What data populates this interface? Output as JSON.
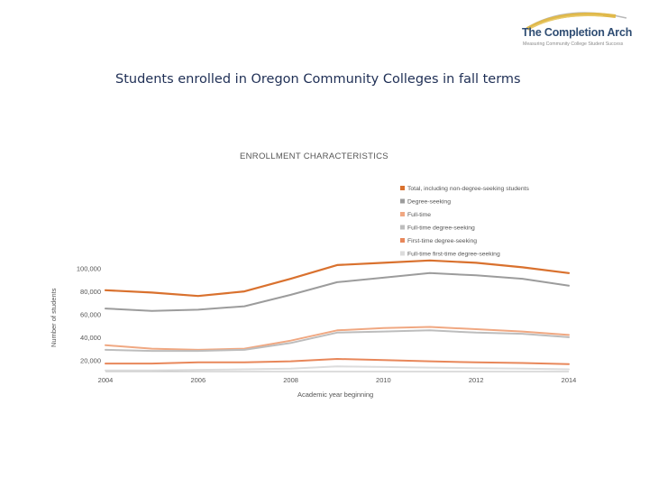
{
  "logo": {
    "title": "The Completion Arch",
    "tagline": "Measuring Community College Student Success",
    "colors": {
      "arc_gold": "#e0b94a",
      "arc_gray": "#b8b8b8",
      "text": "#2f4d73"
    }
  },
  "slide_title": "Students enrolled in Oregon Community Colleges in fall terms",
  "chart_data": {
    "type": "line",
    "title": "ENROLLMENT CHARACTERISTICS",
    "xlabel": "Academic year beginning",
    "ylabel": "Number of students",
    "x": [
      2004,
      2005,
      2006,
      2007,
      2008,
      2009,
      2010,
      2011,
      2012,
      2013,
      2014
    ],
    "xticks": [
      "2004",
      "2006",
      "2008",
      "2010",
      "2012",
      "2014"
    ],
    "xlim": [
      2004,
      2014
    ],
    "ylim": [
      10000,
      110000
    ],
    "yticks": [
      {
        "value": 20000,
        "label": "20,000"
      },
      {
        "value": 40000,
        "label": "40,000"
      },
      {
        "value": 60000,
        "label": "60,000"
      },
      {
        "value": 80000,
        "label": "80,000"
      },
      {
        "value": 100000,
        "label": "100,000"
      }
    ],
    "legend_position": "top-right",
    "series": [
      {
        "name": "Total, including non-degree-seeking students",
        "color": "#d9712e",
        "width": 2.2,
        "values": [
          81000,
          79000,
          76000,
          80000,
          91000,
          103000,
          105000,
          107000,
          105000,
          101000,
          96000
        ]
      },
      {
        "name": "Degree-seeking",
        "color": "#9c9c9c",
        "width": 2.0,
        "values": [
          65000,
          63000,
          64000,
          67000,
          77000,
          88000,
          92000,
          96000,
          94000,
          91000,
          85000
        ]
      },
      {
        "name": "Full-time",
        "color": "#f0a882",
        "width": 2.0,
        "values": [
          33000,
          30000,
          29000,
          30000,
          37000,
          46000,
          48000,
          49000,
          47000,
          45000,
          42000
        ]
      },
      {
        "name": "Full-time degree-seeking",
        "color": "#bdbdbd",
        "width": 2.0,
        "values": [
          29000,
          28000,
          28000,
          29000,
          35000,
          44000,
          45000,
          46000,
          44000,
          43000,
          40000
        ]
      },
      {
        "name": "First-time degree-seeking",
        "color": "#e8875a",
        "width": 2.0,
        "values": [
          17000,
          17000,
          18000,
          18000,
          19000,
          21000,
          20000,
          19000,
          18000,
          17500,
          16500
        ]
      },
      {
        "name": "Full-time first-time degree-seeking",
        "color": "#dcdcdc",
        "width": 2.0,
        "values": [
          11000,
          11000,
          11500,
          12000,
          12500,
          14500,
          14000,
          13500,
          13000,
          12500,
          12000
        ]
      }
    ]
  }
}
